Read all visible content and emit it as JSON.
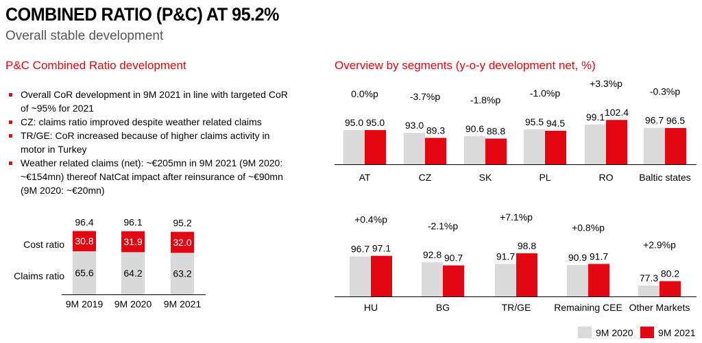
{
  "header": {
    "title": "COMBINED RATIO (P&C) AT 95.2%",
    "subtitle": "Overall stable development"
  },
  "left": {
    "section_title": "P&C Combined Ratio development",
    "bullets": [
      "Overall CoR development in 9M 2021 in line with targeted CoR of ~95% for 2021",
      "CZ: claims ratio improved despite weather related claims",
      "TR/GE: CoR increased because of higher claims activity in motor in Turkey",
      "Weather related claims (net): ~€205mn in 9M 2021 (9M 2020: ~€154mn) thereof NatCat impact after reinsurance of ~€90mn (9M 2020: ~€20mn)"
    ]
  },
  "right": {
    "section_title": "Overview by segments (y-o-y development net, %)"
  },
  "colors": {
    "accent": "#e30613",
    "grey": "#dadada",
    "claims": "#d9d9d9"
  },
  "chart_data": [
    {
      "type": "bar",
      "stacked": true,
      "categories": [
        "9M 2019",
        "9M 2020",
        "9M 2021"
      ],
      "series": [
        {
          "name": "Claims ratio",
          "values": [
            65.6,
            64.2,
            63.2
          ]
        },
        {
          "name": "Cost ratio",
          "values": [
            30.8,
            31.9,
            32.0
          ]
        }
      ],
      "totals": [
        96.4,
        96.1,
        95.2
      ]
    },
    {
      "type": "bar",
      "categories": [
        "AT",
        "CZ",
        "SK",
        "PL",
        "RO",
        "Baltic states"
      ],
      "series": [
        {
          "name": "9M 2020",
          "values": [
            95.0,
            93.0,
            90.6,
            95.5,
            99.1,
            96.7
          ]
        },
        {
          "name": "9M 2021",
          "values": [
            95.0,
            89.3,
            88.8,
            94.5,
            102.4,
            96.5
          ]
        }
      ],
      "annotations": [
        "0.0%p",
        "-3.7%p",
        "-1.8%p",
        "-1.0%p",
        "+3.3%p",
        "-0.3%p"
      ],
      "value_labels": [
        [
          "95.0",
          "95.0"
        ],
        [
          "93.0",
          "89.3"
        ],
        [
          "90.6",
          "88.8"
        ],
        [
          "95.5",
          "94.5"
        ],
        [
          "99.1",
          "102.4"
        ],
        [
          "96.7",
          "96.5"
        ]
      ]
    },
    {
      "type": "bar",
      "categories": [
        "HU",
        "BG",
        "TR/GE",
        "Remaining CEE",
        "Other Markets"
      ],
      "series": [
        {
          "name": "9M 2020",
          "values": [
            96.7,
            92.8,
            91.7,
            90.9,
            77.3
          ]
        },
        {
          "name": "9M 2021",
          "values": [
            97.1,
            90.7,
            98.8,
            91.7,
            80.2
          ]
        }
      ],
      "annotations": [
        "+0.4%p",
        "-2.1%p",
        "+7.1%p",
        "+0.8%p",
        "+2.9%p"
      ],
      "value_labels": [
        [
          "96.7",
          "97.1"
        ],
        [
          "92.8",
          "90.7"
        ],
        [
          "91.7",
          "98.8"
        ],
        [
          "90.9",
          "91.7"
        ],
        [
          "77.3",
          "80.2"
        ]
      ]
    }
  ],
  "legend": {
    "items": [
      "9M 2020",
      "9M 2021"
    ]
  }
}
